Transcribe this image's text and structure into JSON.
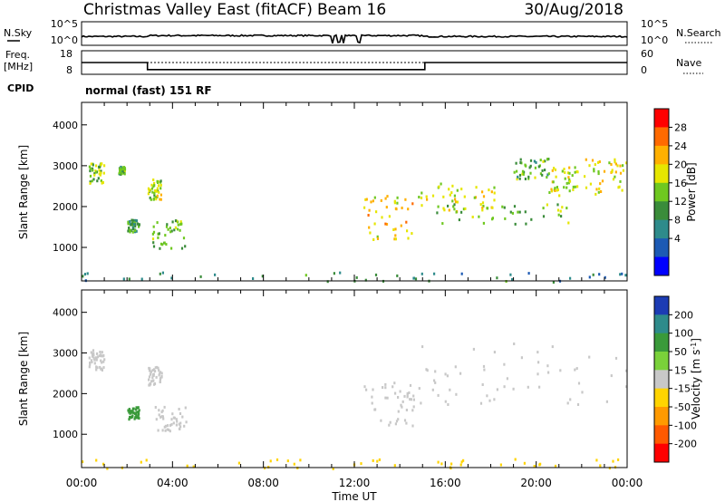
{
  "header": {
    "title": "Christmas Valley East (fitACF)",
    "beam": "Beam 16",
    "date": "30/Aug/2018"
  },
  "chart_data": [
    {
      "type": "line",
      "name": "sky-noise-panel",
      "ylabel": "N.Sky",
      "yticks_left": [
        "10^5",
        "10^0"
      ],
      "yticks_right": [
        "10^5",
        "10^0"
      ],
      "right_label": "N.Search",
      "xlim": [
        0,
        24
      ]
    },
    {
      "type": "line",
      "name": "frequency-panel",
      "ylabel": "Freq. [MHz]",
      "yticks_left": [
        "18",
        "8"
      ],
      "yticks_right": [
        "60",
        "0"
      ],
      "right_label": "Nave",
      "freq_levels": [
        {
          "from": 0,
          "to": 2.9,
          "value": 13
        },
        {
          "from": 2.9,
          "to": 15.1,
          "value": 10
        },
        {
          "from": 15.1,
          "to": 24,
          "value": 13
        }
      ],
      "nave_level": 30,
      "xlim": [
        0,
        24
      ]
    },
    {
      "type": "table",
      "name": "cpid-panel",
      "label": "CPID",
      "mode": "normal (fast) 151 RF"
    },
    {
      "type": "heatmap",
      "name": "power-panel",
      "ylabel": "Slant Range [km]",
      "yticks": [
        1000,
        2000,
        3000,
        4000
      ],
      "ylim": [
        180,
        4550
      ],
      "xlim": [
        0,
        24
      ],
      "colorbar": {
        "label": "Power [dB]",
        "ticks": [
          "28",
          "24",
          "20",
          "16",
          "12",
          "8",
          "4"
        ],
        "colors": [
          "#ff0000",
          "#ff6a00",
          "#ffb000",
          "#e6e600",
          "#6fc820",
          "#3a8c3a",
          "#2e8b8b",
          "#1c5ab4",
          "#0000ff"
        ]
      },
      "regions": [
        {
          "t": [
            0.3,
            1.0
          ],
          "r": [
            2600,
            3100
          ],
          "v": 14
        },
        {
          "t": [
            1.6,
            1.9
          ],
          "r": [
            2800,
            3000
          ],
          "v": 12
        },
        {
          "t": [
            2.0,
            2.5
          ],
          "r": [
            1400,
            1700
          ],
          "v": 9
        },
        {
          "t": [
            2.9,
            3.5
          ],
          "r": [
            2200,
            2700
          ],
          "v": 16
        },
        {
          "t": [
            3.1,
            4.6
          ],
          "r": [
            1000,
            1700
          ],
          "v": 14
        },
        {
          "t": [
            12.4,
            14.6
          ],
          "r": [
            1200,
            2300
          ],
          "v": 20
        },
        {
          "t": [
            14.8,
            18.2
          ],
          "r": [
            1900,
            2600
          ],
          "v": 18
        },
        {
          "t": [
            15.5,
            21.5
          ],
          "r": [
            1600,
            2100
          ],
          "v": 13
        },
        {
          "t": [
            19.0,
            20.5
          ],
          "r": [
            2700,
            3200
          ],
          "v": 12
        },
        {
          "t": [
            20.5,
            21.8
          ],
          "r": [
            2300,
            3000
          ],
          "v": 17
        },
        {
          "t": [
            22.0,
            24.0
          ],
          "r": [
            2300,
            3200
          ],
          "v": 18
        },
        {
          "t": [
            0.0,
            24.0
          ],
          "r": [
            180,
            420
          ],
          "v": 8
        }
      ]
    },
    {
      "type": "heatmap",
      "name": "velocity-panel",
      "ylabel": "Slant Range [km]",
      "xlabel": "Time UT",
      "xticks": [
        "00:00",
        "04:00",
        "08:00",
        "12:00",
        "16:00",
        "20:00",
        "00:00"
      ],
      "xtick_hours": [
        0,
        4,
        8,
        12,
        16,
        20,
        24
      ],
      "yticks": [
        1000,
        2000,
        3000,
        4000
      ],
      "ylim": [
        180,
        4550
      ],
      "xlim": [
        0,
        24
      ],
      "colorbar": {
        "label": "Velocity [m s^-1]",
        "ticks": [
          "200",
          "100",
          "50",
          "15",
          "-15",
          "-50",
          "-100",
          "-200"
        ],
        "colors": [
          "#1c3cb4",
          "#2e8b8b",
          "#3a9a3a",
          "#7ad13a",
          "#c8c8c8",
          "#ffd400",
          "#ff9a00",
          "#ff5a00",
          "#ff0000"
        ]
      },
      "regions": [
        {
          "t": [
            0.3,
            1.0
          ],
          "r": [
            2600,
            3100
          ],
          "v": 0
        },
        {
          "t": [
            2.9,
            3.5
          ],
          "r": [
            2200,
            2700
          ],
          "v": 0
        },
        {
          "t": [
            2.0,
            2.5
          ],
          "r": [
            1400,
            1700
          ],
          "v": 60
        },
        {
          "t": [
            3.1,
            4.6
          ],
          "r": [
            1100,
            1700
          ],
          "v": 0
        },
        {
          "t": [
            12.4,
            14.6
          ],
          "r": [
            1200,
            2300
          ],
          "v": 0
        },
        {
          "t": [
            14.8,
            24.0
          ],
          "r": [
            1700,
            3300
          ],
          "v": 0
        },
        {
          "t": [
            0.0,
            24.0
          ],
          "r": [
            180,
            420
          ],
          "v": -40
        }
      ]
    }
  ]
}
